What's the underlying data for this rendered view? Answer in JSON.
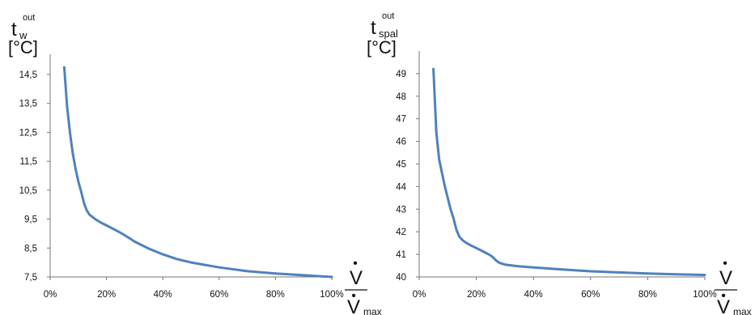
{
  "chart_data": [
    {
      "type": "line",
      "ylabel_main": "t",
      "ylabel_sub": "w",
      "ylabel_sup": "out",
      "ylabel_unit": "[°C]",
      "xlabel_top": "V",
      "xlabel_bottom": "V",
      "xlabel_bottom_sub": "max",
      "ylim": [
        7.5,
        15.2
      ],
      "xlim": [
        0,
        100
      ],
      "y_ticks": [
        7.5,
        8.5,
        9.5,
        10.5,
        11.5,
        12.5,
        13.5,
        14.5
      ],
      "y_tick_labels": [
        "7,5",
        "8,5",
        "9,5",
        "10,5",
        "11,5",
        "12,5",
        "13,5",
        "14,5"
      ],
      "x_ticks": [
        0,
        20,
        40,
        60,
        80,
        100
      ],
      "x_tick_labels": [
        "0%",
        "20%",
        "40%",
        "60%",
        "80%",
        "100%"
      ],
      "line_color": "#4f81bd",
      "grid": false,
      "series": [
        {
          "x": [
            5,
            6,
            7,
            8,
            9,
            10,
            11,
            12,
            13,
            14,
            16,
            18,
            20,
            22,
            24,
            26,
            28,
            30,
            35,
            40,
            45,
            50,
            60,
            70,
            80,
            90,
            100
          ],
          "y": [
            14.75,
            13.4,
            12.5,
            11.8,
            11.25,
            10.8,
            10.45,
            10.05,
            9.8,
            9.65,
            9.5,
            9.38,
            9.28,
            9.18,
            9.08,
            8.97,
            8.85,
            8.72,
            8.48,
            8.28,
            8.12,
            8.0,
            7.83,
            7.7,
            7.62,
            7.56,
            7.5
          ]
        }
      ]
    },
    {
      "type": "line",
      "ylabel_main": "t",
      "ylabel_sub": "spal",
      "ylabel_sup": "out",
      "ylabel_unit": "[°C]",
      "xlabel_top": "V",
      "xlabel_bottom": "V",
      "xlabel_bottom_sub": "max",
      "ylim": [
        40,
        50
      ],
      "xlim": [
        0,
        100
      ],
      "y_ticks": [
        40,
        41,
        42,
        43,
        44,
        45,
        46,
        47,
        48,
        49
      ],
      "y_tick_labels": [
        "40",
        "41",
        "42",
        "43",
        "44",
        "45",
        "46",
        "47",
        "48",
        "49"
      ],
      "x_ticks": [
        0,
        20,
        40,
        60,
        80,
        100
      ],
      "x_tick_labels": [
        "0%",
        "20%",
        "40%",
        "60%",
        "80%",
        "100%"
      ],
      "line_color": "#4f81bd",
      "grid": false,
      "series": [
        {
          "x": [
            5,
            6,
            7,
            8,
            9,
            10,
            11,
            12,
            13,
            14,
            15,
            16,
            18,
            20,
            22,
            24,
            25,
            26,
            27,
            28,
            30,
            35,
            40,
            50,
            60,
            70,
            80,
            90,
            100
          ],
          "y": [
            49.2,
            46.4,
            45.2,
            44.6,
            44.0,
            43.5,
            43.0,
            42.6,
            42.1,
            41.8,
            41.65,
            41.55,
            41.4,
            41.28,
            41.15,
            41.02,
            40.95,
            40.85,
            40.72,
            40.63,
            40.55,
            40.47,
            40.42,
            40.33,
            40.25,
            40.2,
            40.15,
            40.12,
            40.09
          ]
        }
      ]
    }
  ]
}
